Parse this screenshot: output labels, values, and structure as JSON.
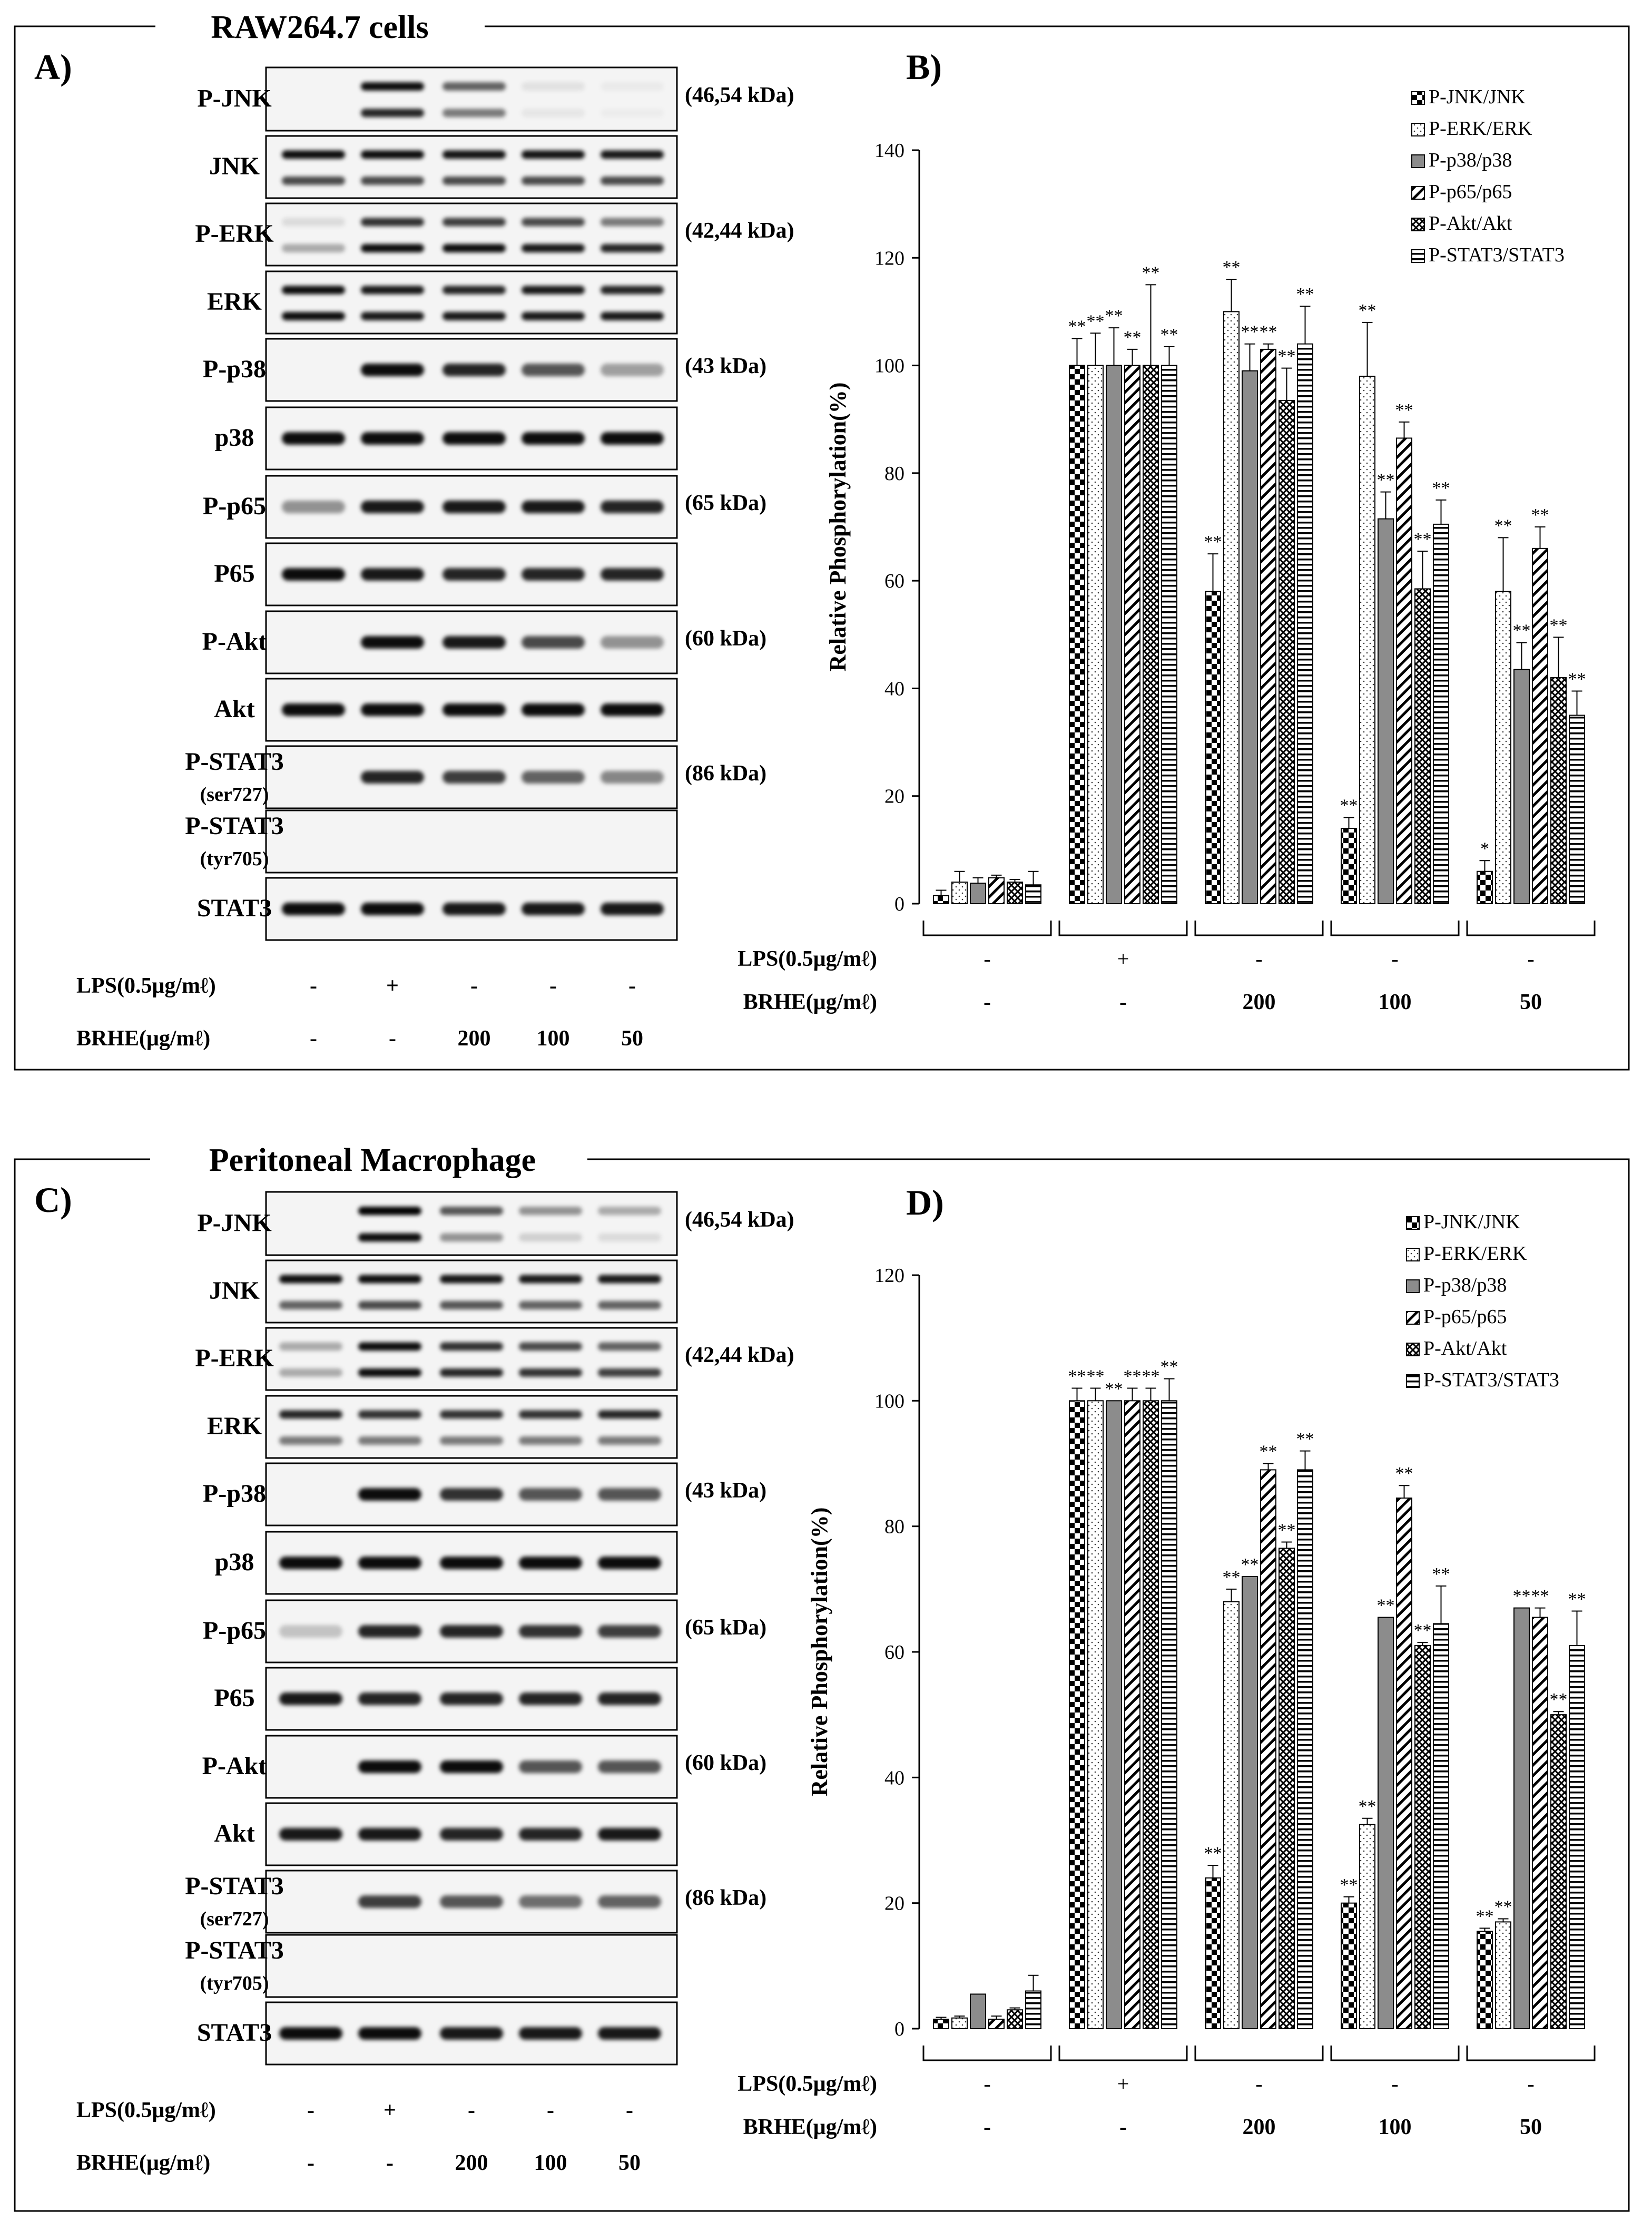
{
  "colors": {
    "ink": "#000000",
    "gray_bar": "#8c8c8c",
    "blot_bg": "#f4f4f4",
    "band": "#111111"
  },
  "patterns": [
    "checker",
    "dots",
    "gray",
    "diag",
    "crosshatch",
    "hlines"
  ],
  "panels": [
    {
      "title": "RAW264.7 cells",
      "blot_letter": "A)",
      "chart_letter": "B)",
      "blot": {
        "rows": [
          {
            "label": "P-JNK",
            "kda": "(46,54 kDa)",
            "bands": [
              [
                0,
                0
              ],
              [
                0.95,
                0.85
              ],
              [
                0.6,
                0.5
              ],
              [
                0.08,
                0.06
              ],
              [
                0.04,
                0.03
              ]
            ]
          },
          {
            "label": "JNK",
            "bands": [
              [
                0.95,
                0.7
              ],
              [
                0.95,
                0.7
              ],
              [
                0.92,
                0.7
              ],
              [
                0.92,
                0.7
              ],
              [
                0.9,
                0.7
              ]
            ]
          },
          {
            "label": "P-ERK",
            "kda": "(42,44 kDa)",
            "bands": [
              [
                0.1,
                0.3
              ],
              [
                0.8,
                0.95
              ],
              [
                0.75,
                0.95
              ],
              [
                0.7,
                0.9
              ],
              [
                0.5,
                0.85
              ]
            ]
          },
          {
            "label": "ERK",
            "bands": [
              [
                0.95,
                0.95
              ],
              [
                0.9,
                0.9
              ],
              [
                0.85,
                0.9
              ],
              [
                0.9,
                0.9
              ],
              [
                0.85,
                0.9
              ]
            ]
          },
          {
            "label": "P-p38",
            "kda": "(43 kDa)",
            "bands": [
              [
                0.0
              ],
              [
                0.95
              ],
              [
                0.85
              ],
              [
                0.65
              ],
              [
                0.35
              ]
            ]
          },
          {
            "label": "p38",
            "bands": [
              [
                0.95
              ],
              [
                0.95
              ],
              [
                0.95
              ],
              [
                0.95
              ],
              [
                0.95
              ]
            ]
          },
          {
            "label": "P-p65",
            "kda": "(65 kDa)",
            "bands": [
              [
                0.4
              ],
              [
                0.9
              ],
              [
                0.9
              ],
              [
                0.9
              ],
              [
                0.85
              ]
            ]
          },
          {
            "label": "P65",
            "bands": [
              [
                0.95
              ],
              [
                0.9
              ],
              [
                0.85
              ],
              [
                0.85
              ],
              [
                0.85
              ]
            ]
          },
          {
            "label": "P-Akt",
            "kda": "(60 kDa)",
            "bands": [
              [
                0.0
              ],
              [
                0.95
              ],
              [
                0.9
              ],
              [
                0.7
              ],
              [
                0.4
              ]
            ]
          },
          {
            "label": "Akt",
            "bands": [
              [
                0.95
              ],
              [
                0.95
              ],
              [
                0.95
              ],
              [
                0.95
              ],
              [
                0.95
              ]
            ]
          },
          {
            "label": "P-STAT3",
            "sub": "(ser727)",
            "kda": "(86 kDa)",
            "bands": [
              [
                0.0
              ],
              [
                0.85
              ],
              [
                0.75
              ],
              [
                0.6
              ],
              [
                0.45
              ]
            ]
          },
          {
            "label": "P-STAT3",
            "sub": "(tyr705)",
            "bands": [
              [
                0.0
              ],
              [
                0.0
              ],
              [
                0.0
              ],
              [
                0.0
              ],
              [
                0.0
              ]
            ]
          },
          {
            "label": "STAT3",
            "bands": [
              [
                0.95
              ],
              [
                0.95
              ],
              [
                0.9
              ],
              [
                0.9
              ],
              [
                0.9
              ]
            ]
          }
        ],
        "lps_label": "LPS(0.5μg/mℓ)",
        "brhe_label": "BRHE(μg/mℓ)",
        "lps": [
          "-",
          "+",
          "-",
          "-",
          "-"
        ],
        "brhe": [
          "-",
          "-",
          "200",
          "100",
          "50"
        ]
      },
      "chart_data": {
        "type": "bar",
        "ylabel": "Relative Phosphorylation(%)",
        "ylim": [
          0,
          140
        ],
        "yticks": [
          0,
          20,
          40,
          60,
          80,
          100,
          120,
          140
        ],
        "groups_lps": [
          "-",
          "+",
          "-",
          "-",
          "-"
        ],
        "groups_brhe": [
          "-",
          "-",
          "200",
          "100",
          "50"
        ],
        "lps_label": "LPS(0.5μg/mℓ)",
        "brhe_label": "BRHE(μg/mℓ)",
        "series": [
          {
            "name": "P-JNK/JNK",
            "values": [
              1.5,
              100,
              58,
              14,
              6
            ],
            "errors": [
              1,
              5,
              7,
              2,
              2
            ],
            "sig": [
              "",
              "**",
              "**",
              "**",
              "*"
            ]
          },
          {
            "name": "P-ERK/ERK",
            "values": [
              4,
              100,
              110,
              98,
              58
            ],
            "errors": [
              2,
              6,
              6,
              10,
              10
            ],
            "sig": [
              "",
              "**",
              "**",
              "**",
              "**"
            ]
          },
          {
            "name": "P-p38/p38",
            "values": [
              3.8,
              100,
              99,
              71.5,
              43.5
            ],
            "errors": [
              1,
              7,
              5,
              5,
              5
            ],
            "sig": [
              "",
              "**",
              "**",
              "**",
              "**"
            ]
          },
          {
            "name": "P-p65/p65",
            "values": [
              4.8,
              100,
              103,
              86.5,
              66
            ],
            "errors": [
              0.5,
              3,
              1,
              3,
              4
            ],
            "sig": [
              "",
              "**",
              "**",
              "**",
              "**"
            ]
          },
          {
            "name": "P-Akt/Akt",
            "values": [
              4,
              100,
              93.5,
              58.5,
              42
            ],
            "errors": [
              0.5,
              15,
              6,
              7,
              7.5
            ],
            "sig": [
              "",
              "**",
              "**",
              "**",
              "**"
            ]
          },
          {
            "name": "P-STAT3/STAT3",
            "values": [
              3.5,
              100,
              104,
              70.5,
              35
            ],
            "errors": [
              2.5,
              3.5,
              7,
              4.5,
              4.5
            ],
            "sig": [
              "",
              "**",
              "**",
              "**",
              "**"
            ]
          }
        ]
      }
    },
    {
      "title": "Peritoneal Macrophage",
      "blot_letter": "C)",
      "chart_letter": "D)",
      "blot": {
        "rows": [
          {
            "label": "P-JNK",
            "kda": "(46,54 kDa)",
            "bands": [
              [
                0,
                0
              ],
              [
                1.0,
                0.95
              ],
              [
                0.65,
                0.4
              ],
              [
                0.4,
                0.15
              ],
              [
                0.3,
                0.1
              ]
            ]
          },
          {
            "label": "JNK",
            "bands": [
              [
                0.95,
                0.6
              ],
              [
                0.95,
                0.7
              ],
              [
                0.92,
                0.65
              ],
              [
                0.9,
                0.6
              ],
              [
                0.9,
                0.6
              ]
            ]
          },
          {
            "label": "P-ERK",
            "kda": "(42,44 kDa)",
            "bands": [
              [
                0.3,
                0.3
              ],
              [
                0.95,
                0.95
              ],
              [
                0.8,
                0.85
              ],
              [
                0.7,
                0.8
              ],
              [
                0.6,
                0.75
              ]
            ]
          },
          {
            "label": "ERK",
            "bands": [
              [
                0.85,
                0.5
              ],
              [
                0.8,
                0.5
              ],
              [
                0.8,
                0.5
              ],
              [
                0.8,
                0.5
              ],
              [
                0.85,
                0.5
              ]
            ]
          },
          {
            "label": "P-p38",
            "kda": "(43 kDa)",
            "bands": [
              [
                0.0
              ],
              [
                0.95
              ],
              [
                0.8
              ],
              [
                0.65
              ],
              [
                0.65
              ]
            ]
          },
          {
            "label": "p38",
            "bands": [
              [
                0.95
              ],
              [
                0.95
              ],
              [
                0.95
              ],
              [
                0.95
              ],
              [
                0.95
              ]
            ]
          },
          {
            "label": "P-p65",
            "kda": "(65 kDa)",
            "bands": [
              [
                0.2
              ],
              [
                0.85
              ],
              [
                0.85
              ],
              [
                0.8
              ],
              [
                0.75
              ]
            ]
          },
          {
            "label": "P65",
            "bands": [
              [
                0.9
              ],
              [
                0.85
              ],
              [
                0.85
              ],
              [
                0.85
              ],
              [
                0.85
              ]
            ]
          },
          {
            "label": "P-Akt",
            "kda": "(60 kDa)",
            "bands": [
              [
                0.0
              ],
              [
                0.95
              ],
              [
                0.95
              ],
              [
                0.65
              ],
              [
                0.65
              ]
            ]
          },
          {
            "label": "Akt",
            "bands": [
              [
                0.9
              ],
              [
                0.9
              ],
              [
                0.85
              ],
              [
                0.85
              ],
              [
                0.9
              ]
            ]
          },
          {
            "label": "P-STAT3",
            "sub": "(ser727)",
            "kda": "(86 kDa)",
            "bands": [
              [
                0.0
              ],
              [
                0.75
              ],
              [
                0.65
              ],
              [
                0.55
              ],
              [
                0.6
              ]
            ]
          },
          {
            "label": "P-STAT3",
            "sub": "(tyr705)",
            "bands": [
              [
                0.0
              ],
              [
                0.0
              ],
              [
                0.0
              ],
              [
                0.0
              ],
              [
                0.0
              ]
            ]
          },
          {
            "label": "STAT3",
            "bands": [
              [
                0.95
              ],
              [
                0.95
              ],
              [
                0.9
              ],
              [
                0.9
              ],
              [
                0.9
              ]
            ]
          }
        ],
        "lps_label": "LPS(0.5μg/mℓ)",
        "brhe_label": "BRHE(μg/mℓ)",
        "lps": [
          "-",
          "+",
          "-",
          "-",
          "-"
        ],
        "brhe": [
          "-",
          "-",
          "200",
          "100",
          "50"
        ]
      },
      "chart_data": {
        "type": "bar",
        "ylabel": "Relative Phosphorylation(%)",
        "ylim": [
          0,
          120
        ],
        "yticks": [
          0,
          20,
          40,
          60,
          80,
          100,
          120
        ],
        "groups_lps": [
          "-",
          "+",
          "-",
          "-",
          "-"
        ],
        "groups_brhe": [
          "-",
          "-",
          "200",
          "100",
          "50"
        ],
        "lps_label": "LPS(0.5μg/mℓ)",
        "brhe_label": "BRHE(μg/mℓ)",
        "series": [
          {
            "name": "P-JNK/JNK",
            "values": [
              1.5,
              100,
              24,
              20,
              15.5
            ],
            "errors": [
              0.3,
              2,
              2,
              1,
              0.5
            ],
            "sig": [
              "",
              "**",
              "**",
              "**",
              "**"
            ]
          },
          {
            "name": "P-ERK/ERK",
            "values": [
              1.7,
              100,
              68,
              32.5,
              17
            ],
            "errors": [
              0.3,
              2,
              2,
              1,
              0.5
            ],
            "sig": [
              "",
              "**",
              "**",
              "**",
              "**"
            ]
          },
          {
            "name": "P-p38/p38",
            "values": [
              5.5,
              100,
              72,
              65.5,
              67
            ],
            "errors": [
              0,
              0,
              0,
              0,
              0
            ],
            "sig": [
              "",
              "**",
              "**",
              "**",
              "**"
            ]
          },
          {
            "name": "P-p65/p65",
            "values": [
              1.5,
              100,
              89,
              84.5,
              65.5
            ],
            "errors": [
              0.5,
              2,
              1,
              2,
              1.5
            ],
            "sig": [
              "",
              "**",
              "**",
              "**",
              "**"
            ]
          },
          {
            "name": "P-Akt/Akt",
            "values": [
              3,
              100,
              76.5,
              61,
              50
            ],
            "errors": [
              0.3,
              2,
              1,
              0.5,
              0.5
            ],
            "sig": [
              "",
              "**",
              "**",
              "**",
              "**"
            ]
          },
          {
            "name": "P-STAT3/STAT3",
            "values": [
              6,
              100,
              89,
              64.5,
              61
            ],
            "errors": [
              2.5,
              3.5,
              3,
              6,
              5.5
            ],
            "sig": [
              "",
              "**",
              "**",
              "**",
              "**"
            ]
          }
        ]
      }
    }
  ]
}
